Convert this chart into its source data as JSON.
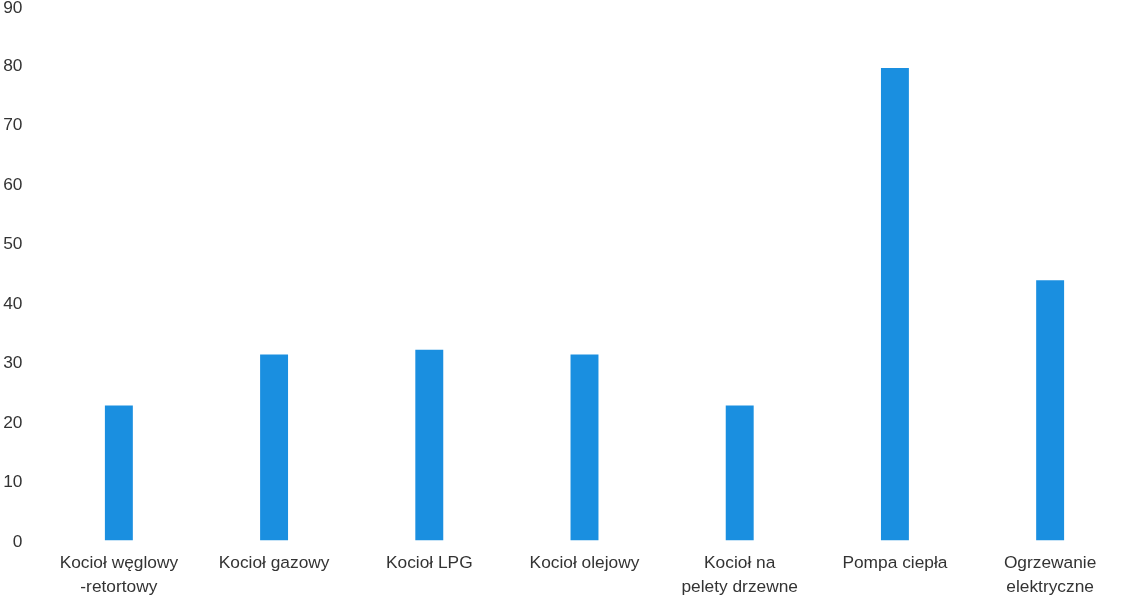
{
  "chart_data": {
    "type": "bar",
    "categories": [
      "Kocioł węglowy -retortowy",
      "Kocioł gazowy",
      "Kocioł LPG",
      "Kocioł olejowy",
      "Kocioł na pelety drzewne",
      "Pompa ciepła",
      "Ogrzewanie elektryczne"
    ],
    "values": [
      22.7,
      31.3,
      32.1,
      31.3,
      22.7,
      79.5,
      43.8
    ],
    "color": "#1a8fe0",
    "ylim": [
      0,
      90
    ],
    "yticks": [
      0,
      10,
      20,
      30,
      40,
      50,
      60,
      70,
      80,
      90
    ],
    "grid": false
  }
}
